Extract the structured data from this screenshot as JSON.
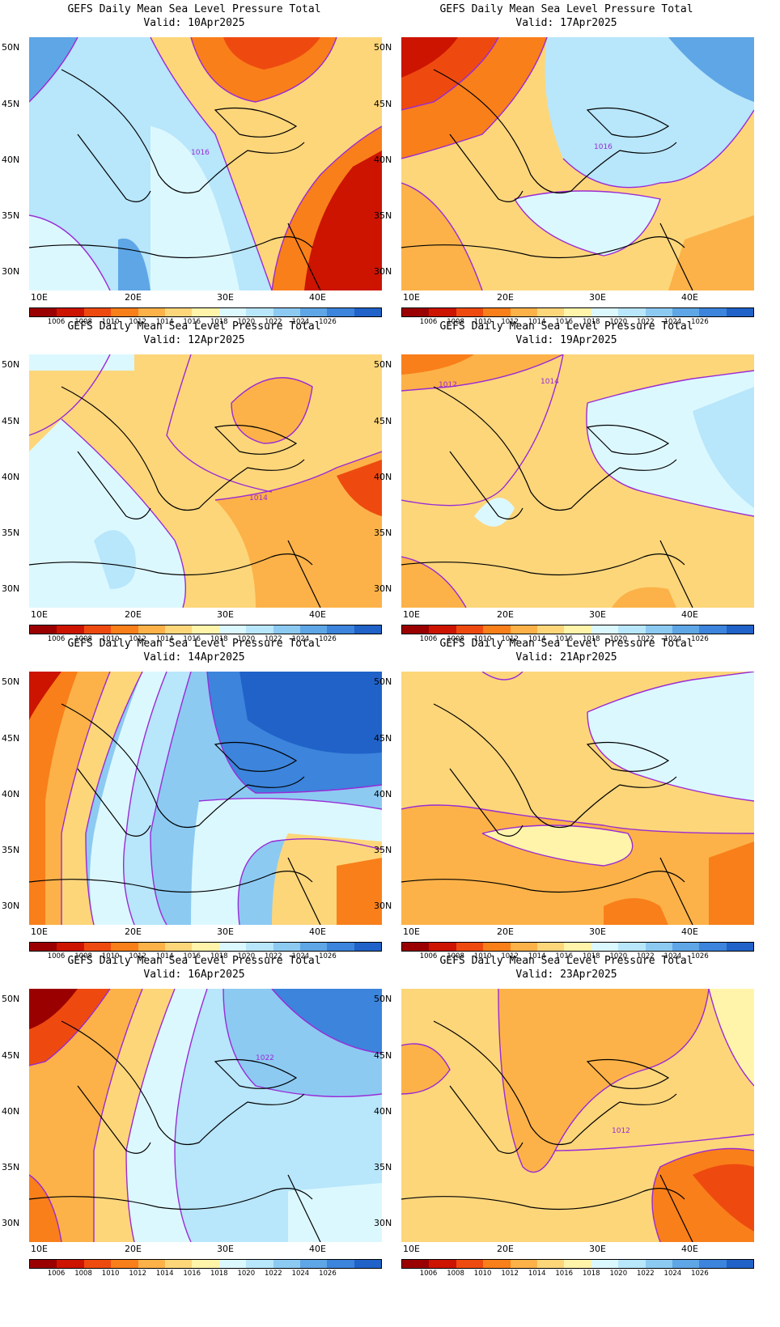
{
  "colorbar": {
    "labels": [
      "1006",
      "1008",
      "1010",
      "1012",
      "1014",
      "1016",
      "1018",
      "1020",
      "1022",
      "1024",
      "1026"
    ],
    "colors": [
      "#9a0000",
      "#cc1400",
      "#ee4a10",
      "#f97f1a",
      "#fcb248",
      "#fdd67a",
      "#fff4aa",
      "#dcf8ff",
      "#b8e6fb",
      "#8ccaf2",
      "#5ea6e6",
      "#3c84dc",
      "#2062c8"
    ]
  },
  "axes": {
    "lat_labels": [
      "50N",
      "45N",
      "40N",
      "35N",
      "30N"
    ],
    "lon_labels": [
      "10E",
      "20E",
      "30E",
      "40E"
    ]
  },
  "panels": [
    {
      "line1": "GEFS Daily Mean Sea Level Pressure Total",
      "line2": "Valid: 10Apr2025",
      "label": "1016"
    },
    {
      "line1": "GEFS Daily Mean Sea Level Pressure Total",
      "line2": "Valid: 17Apr2025",
      "label": "1016"
    },
    {
      "line1": "GEFS Daily Mean Sea Level Pressure Total",
      "line2": "Valid: 12Apr2025",
      "label": "1014"
    },
    {
      "line1": "GEFS Daily Mean Sea Level Pressure Total",
      "line2": "Valid: 19Apr2025",
      "label": "1012",
      "label2": "1014"
    },
    {
      "line1": "GEFS Daily Mean Sea Level Pressure Total",
      "line2": "Valid: 14Apr2025"
    },
    {
      "line1": "GEFS Daily Mean Sea Level Pressure Total",
      "line2": "Valid: 21Apr2025"
    },
    {
      "line1": "GEFS Daily Mean Sea Level Pressure Total",
      "line2": "Valid: 16Apr2025",
      "label": "1022"
    },
    {
      "line1": "GEFS Daily Mean Sea Level Pressure Total",
      "line2": "Valid: 23Apr2025",
      "label": "1012"
    }
  ]
}
